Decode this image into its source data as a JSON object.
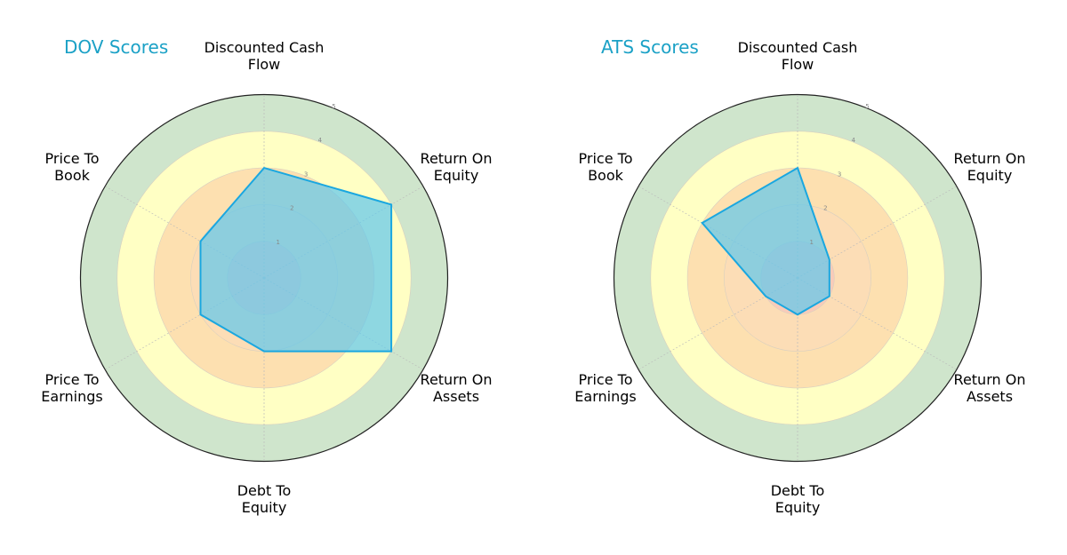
{
  "chart_data": [
    {
      "type": "radar",
      "title": "DOV Scores",
      "categories": [
        "Discounted Cash\nFlow",
        "Return On\nEquity",
        "Return On\nAssets",
        "Debt To\nEquity",
        "Price To\nEarnings",
        "Price To\nBook"
      ],
      "values": [
        3,
        4,
        4,
        2,
        2,
        2
      ],
      "rlim": [
        0,
        5
      ],
      "rticks": [
        1,
        2,
        3,
        4,
        5
      ],
      "band_colors": [
        "#f5bcbc",
        "#fbd9bc",
        "#fde0b0",
        "#ffffc4",
        "#cfe5cc"
      ],
      "fill_color": "#62c8ec",
      "line_color": "#1aa7e0"
    },
    {
      "type": "radar",
      "title": "ATS Scores",
      "categories": [
        "Discounted Cash\nFlow",
        "Return On\nEquity",
        "Return On\nAssets",
        "Debt To\nEquity",
        "Price To\nEarnings",
        "Price To\nBook"
      ],
      "values": [
        3,
        1,
        1,
        1,
        1,
        3
      ],
      "rlim": [
        0,
        5
      ],
      "rticks": [
        1,
        2,
        3,
        4,
        5
      ],
      "band_colors": [
        "#f5bcbc",
        "#fbd9bc",
        "#fde0b0",
        "#ffffc4",
        "#cfe5cc"
      ],
      "fill_color": "#62c8ec",
      "line_color": "#1aa7e0"
    }
  ]
}
